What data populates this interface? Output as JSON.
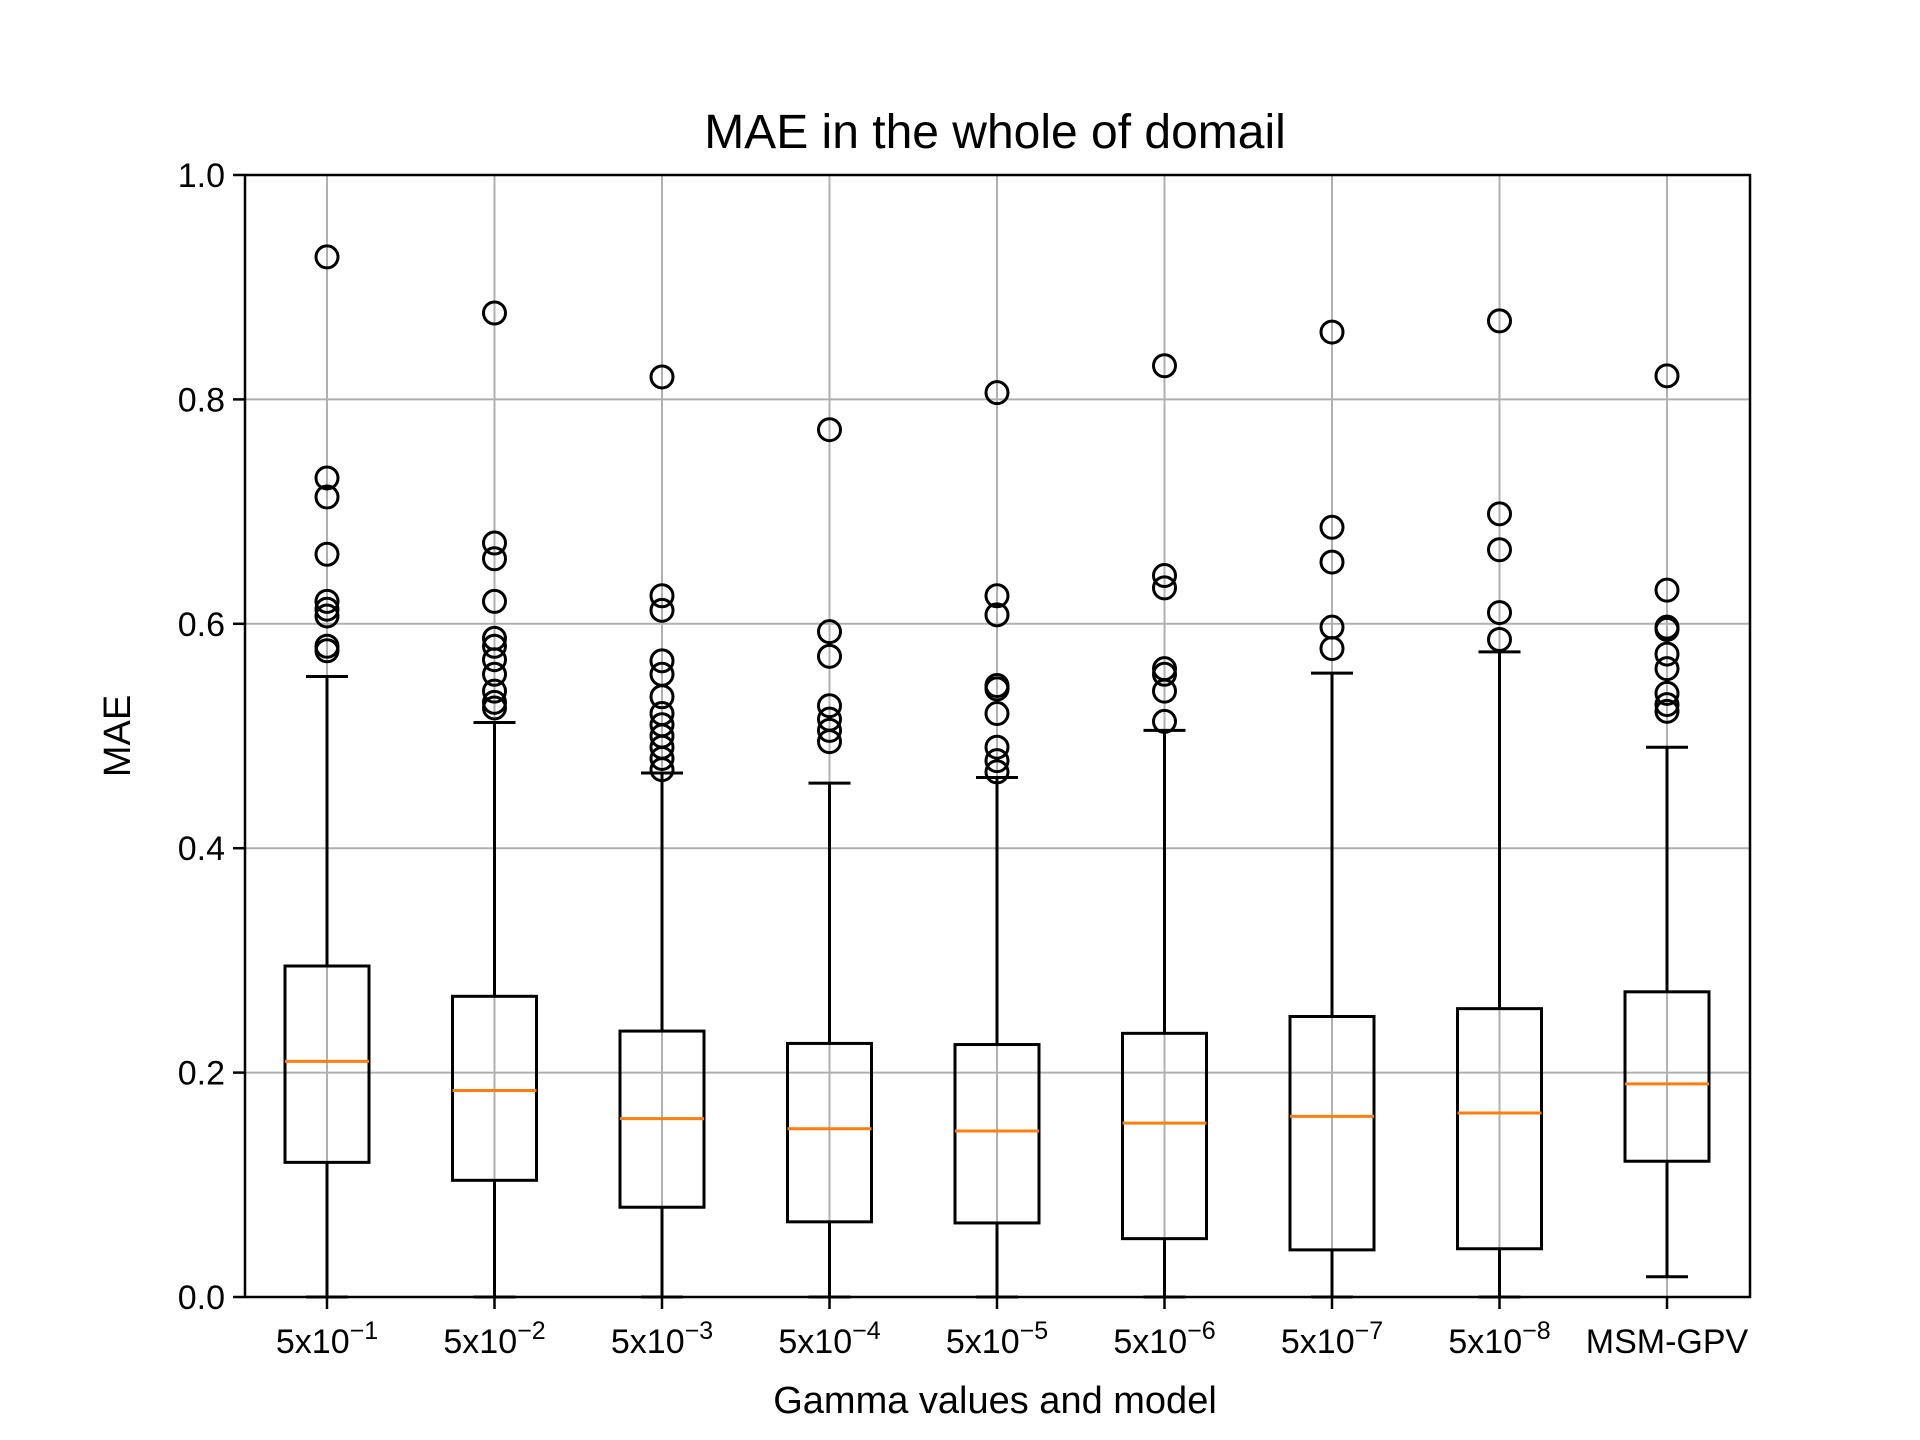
{
  "chart_data": {
    "type": "box",
    "title": "MAE in the whole of domail",
    "xlabel": "Gamma values and model",
    "ylabel": "MAE",
    "ylim": [
      0.0,
      1.0
    ],
    "yticks": [
      "0.0",
      "0.2",
      "0.4",
      "0.6",
      "0.8",
      "1.0"
    ],
    "grid": true,
    "categories": [
      {
        "base": "5x10",
        "exp": "−1"
      },
      {
        "base": "5x10",
        "exp": "−2"
      },
      {
        "base": "5x10",
        "exp": "−3"
      },
      {
        "base": "5x10",
        "exp": "−4"
      },
      {
        "base": "5x10",
        "exp": "−5"
      },
      {
        "base": "5x10",
        "exp": "−6"
      },
      {
        "base": "5x10",
        "exp": "−7"
      },
      {
        "base": "5x10",
        "exp": "−8"
      },
      {
        "base": "MSM-GPV",
        "exp": ""
      }
    ],
    "boxes": [
      {
        "whislo": 0.0,
        "q1": 0.12,
        "med": 0.21,
        "q3": 0.295,
        "whishi": 0.553,
        "fliers": [
          0.927,
          0.73,
          0.713,
          0.662,
          0.62,
          0.613,
          0.607,
          0.58,
          0.576
        ]
      },
      {
        "whislo": 0.0,
        "q1": 0.104,
        "med": 0.184,
        "q3": 0.268,
        "whishi": 0.512,
        "fliers": [
          0.877,
          0.672,
          0.658,
          0.62,
          0.587,
          0.58,
          0.568,
          0.555,
          0.54,
          0.53,
          0.525
        ]
      },
      {
        "whislo": 0.0,
        "q1": 0.08,
        "med": 0.159,
        "q3": 0.237,
        "whishi": 0.467,
        "fliers": [
          0.82,
          0.625,
          0.612,
          0.567,
          0.555,
          0.535,
          0.52,
          0.51,
          0.5,
          0.49,
          0.48,
          0.47
        ]
      },
      {
        "whislo": 0.0,
        "q1": 0.067,
        "med": 0.15,
        "q3": 0.226,
        "whishi": 0.458,
        "fliers": [
          0.773,
          0.593,
          0.571,
          0.527,
          0.515,
          0.505,
          0.495
        ]
      },
      {
        "whislo": 0.0,
        "q1": 0.066,
        "med": 0.148,
        "q3": 0.225,
        "whishi": 0.463,
        "fliers": [
          0.806,
          0.625,
          0.608,
          0.545,
          0.542,
          0.52,
          0.49,
          0.478,
          0.468
        ]
      },
      {
        "whislo": 0.0,
        "q1": 0.052,
        "med": 0.155,
        "q3": 0.235,
        "whishi": 0.505,
        "fliers": [
          0.83,
          0.643,
          0.632,
          0.56,
          0.555,
          0.54,
          0.513
        ]
      },
      {
        "whislo": 0.0,
        "q1": 0.042,
        "med": 0.161,
        "q3": 0.25,
        "whishi": 0.556,
        "fliers": [
          0.86,
          0.686,
          0.655,
          0.597,
          0.578
        ]
      },
      {
        "whislo": 0.0,
        "q1": 0.043,
        "med": 0.164,
        "q3": 0.257,
        "whishi": 0.575,
        "fliers": [
          0.87,
          0.698,
          0.666,
          0.61,
          0.586
        ]
      },
      {
        "whislo": 0.018,
        "q1": 0.121,
        "med": 0.19,
        "q3": 0.272,
        "whishi": 0.49,
        "fliers": [
          0.821,
          0.63,
          0.597,
          0.595,
          0.573,
          0.56,
          0.538,
          0.528,
          0.522
        ]
      }
    ],
    "colors": {
      "median": "#ff7f0e",
      "box": "#000000",
      "grid": "#b0b0b0"
    }
  }
}
